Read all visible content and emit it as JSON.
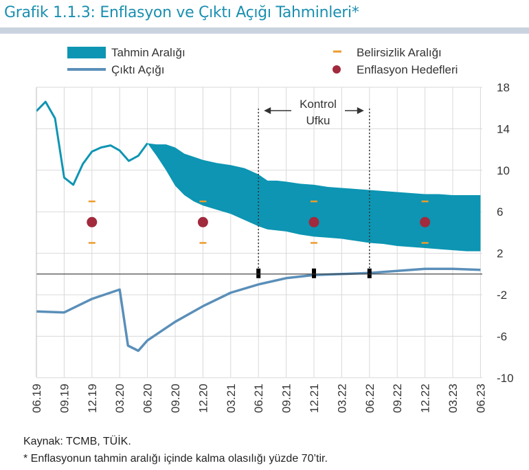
{
  "title": "Grafik 1.1.3: Enflasyon ve Çıktı Açığı Tahminleri*",
  "legend": {
    "band": "Tahmin Aralığı",
    "gap": "Çıktı Açığı",
    "uncertainty": "Belirsizlik Aralığı",
    "targets": "Enflasyon Hedefleri"
  },
  "annotation": {
    "line1": "Kontrol",
    "line2": "Ufku"
  },
  "footer": {
    "source": "Kaynak: TCMB, TÜİK.",
    "note": "* Enflasyonun tahmin aralığı içinde kalma olasılığı yüzde 70’tir."
  },
  "colors": {
    "band": "#0d95b3",
    "gap": "#5a8fb9",
    "target": "#a12a3c",
    "uncertainty": "#ee9b2c",
    "title": "#1a8fb0"
  },
  "chart_data": {
    "type": "line",
    "x_ticks": [
      "06.19",
      "09.19",
      "12.19",
      "03.20",
      "06.20",
      "09.20",
      "12.20",
      "03.21",
      "06.21",
      "09.21",
      "12.21",
      "03.22",
      "06.22",
      "09.22",
      "12.22",
      "03.23",
      "06.23"
    ],
    "ylim": [
      -10,
      18
    ],
    "y_ticks": [
      18,
      14,
      10,
      6,
      2,
      -2,
      -6,
      -10
    ],
    "grid": true,
    "legend_position": "top",
    "inflation_history": {
      "x": [
        0,
        0.33,
        0.67,
        1,
        1.33,
        1.67,
        2,
        2.33,
        2.67,
        3,
        3.33,
        3.67,
        4
      ],
      "y": [
        15.7,
        16.6,
        15.0,
        9.3,
        8.6,
        10.6,
        11.8,
        12.2,
        12.4,
        11.9,
        10.9,
        11.4,
        12.6
      ]
    },
    "forecast_band": {
      "x": [
        4,
        4.33,
        4.67,
        5,
        5.33,
        5.67,
        6,
        6.5,
        7,
        7.5,
        8,
        8.33,
        8.67,
        9,
        9.5,
        10,
        10.5,
        11,
        11.5,
        12,
        12.5,
        13,
        13.5,
        14,
        14.5,
        15,
        15.5,
        16
      ],
      "upper": [
        12.6,
        12.5,
        12.5,
        12.2,
        11.6,
        11.3,
        11.0,
        10.7,
        10.5,
        10.2,
        9.6,
        9.0,
        9.0,
        8.9,
        8.7,
        8.6,
        8.4,
        8.3,
        8.2,
        8.1,
        8.0,
        7.9,
        7.8,
        7.7,
        7.7,
        7.6,
        7.6,
        7.6
      ],
      "lower": [
        12.6,
        11.4,
        10.0,
        8.5,
        7.6,
        7.0,
        6.6,
        6.2,
        5.8,
        5.2,
        4.6,
        4.3,
        4.2,
        4.1,
        3.8,
        3.6,
        3.5,
        3.4,
        3.2,
        3.0,
        2.9,
        2.7,
        2.6,
        2.5,
        2.4,
        2.3,
        2.2,
        2.2
      ]
    },
    "output_gap": {
      "x": [
        0,
        1,
        2,
        3,
        3.3,
        3.67,
        4,
        5,
        6,
        7,
        8,
        9,
        10,
        11,
        12,
        13,
        14,
        15,
        16
      ],
      "y": [
        -3.6,
        -3.7,
        -2.4,
        -1.5,
        -6.9,
        -7.4,
        -6.4,
        -4.6,
        -3.1,
        -1.8,
        -1.0,
        -0.4,
        -0.1,
        0.0,
        0.1,
        0.3,
        0.5,
        0.5,
        0.4
      ]
    },
    "inflation_targets": {
      "x": [
        2,
        6,
        10,
        14
      ],
      "y": [
        5,
        5,
        5,
        5
      ]
    },
    "uncertainty_band": {
      "x": [
        2,
        6,
        10,
        14
      ],
      "upper": [
        7,
        7,
        7,
        7
      ],
      "lower": [
        3,
        3,
        3,
        3
      ]
    },
    "control_horizon": {
      "start": 8,
      "end": 12
    },
    "horizon_markers": [
      8,
      10,
      12
    ]
  }
}
